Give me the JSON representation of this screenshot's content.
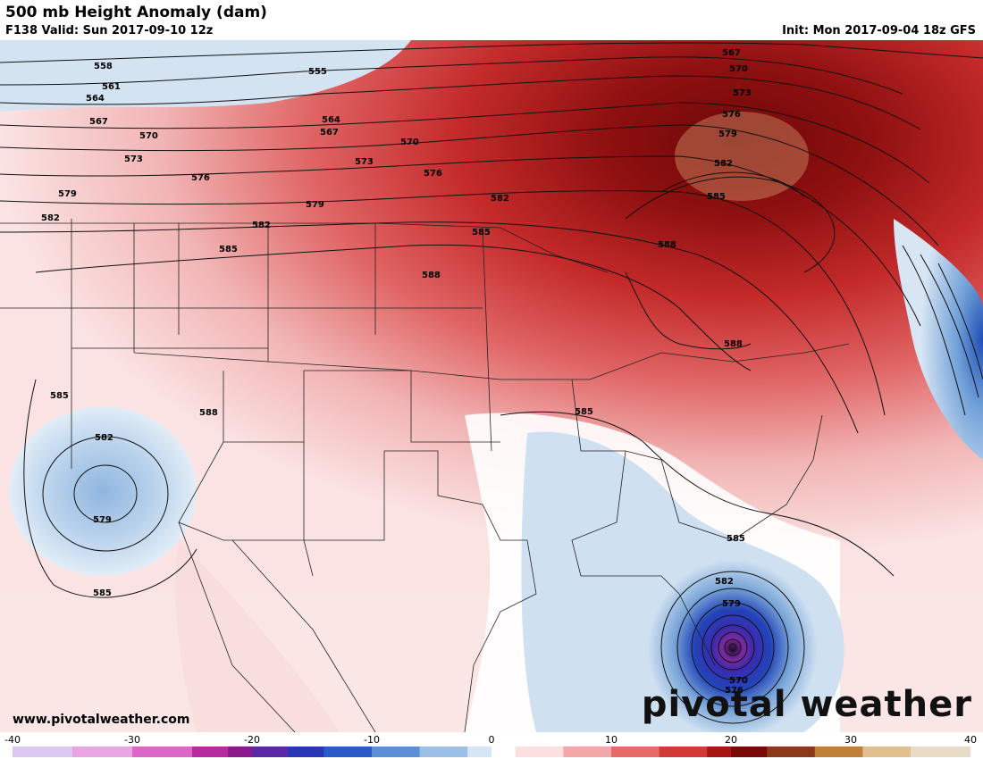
{
  "header": {
    "title": "500 mb Height Anomaly (dam)",
    "valid": "F138 Valid: Sun 2017-09-10 12z",
    "init": "Init: Mon 2017-09-04 18z GFS"
  },
  "footer": {
    "website": "www.pivotalweather.com",
    "brand": "pivotal weather"
  },
  "colorbar": {
    "ticks": [
      {
        "value": -40,
        "label": "-40"
      },
      {
        "value": -30,
        "label": "-30"
      },
      {
        "value": -20,
        "label": "-20"
      },
      {
        "value": -10,
        "label": "-10"
      },
      {
        "value": 0,
        "label": "0"
      },
      {
        "value": 10,
        "label": "10"
      },
      {
        "value": 20,
        "label": "20"
      },
      {
        "value": 30,
        "label": "30"
      },
      {
        "value": 40,
        "label": "40"
      }
    ],
    "range": [
      -40,
      40
    ]
  },
  "contours": {
    "labels": [
      "555",
      "558",
      "561",
      "564",
      "567",
      "570",
      "573",
      "576",
      "579",
      "582",
      "585",
      "588"
    ],
    "hurricane_low_labels": [
      "582",
      "579",
      "570",
      "576"
    ],
    "pacific_low_labels": [
      "582",
      "579",
      "585"
    ]
  },
  "colors": {
    "strong_positive": "#7a0a0a",
    "positive": "#c42a2a",
    "weak_positive": "#f2c0c0",
    "weak_negative": "#c8dcef",
    "strong_negative": "#1e3fa8",
    "extreme_negative": "#5b1f8e"
  }
}
